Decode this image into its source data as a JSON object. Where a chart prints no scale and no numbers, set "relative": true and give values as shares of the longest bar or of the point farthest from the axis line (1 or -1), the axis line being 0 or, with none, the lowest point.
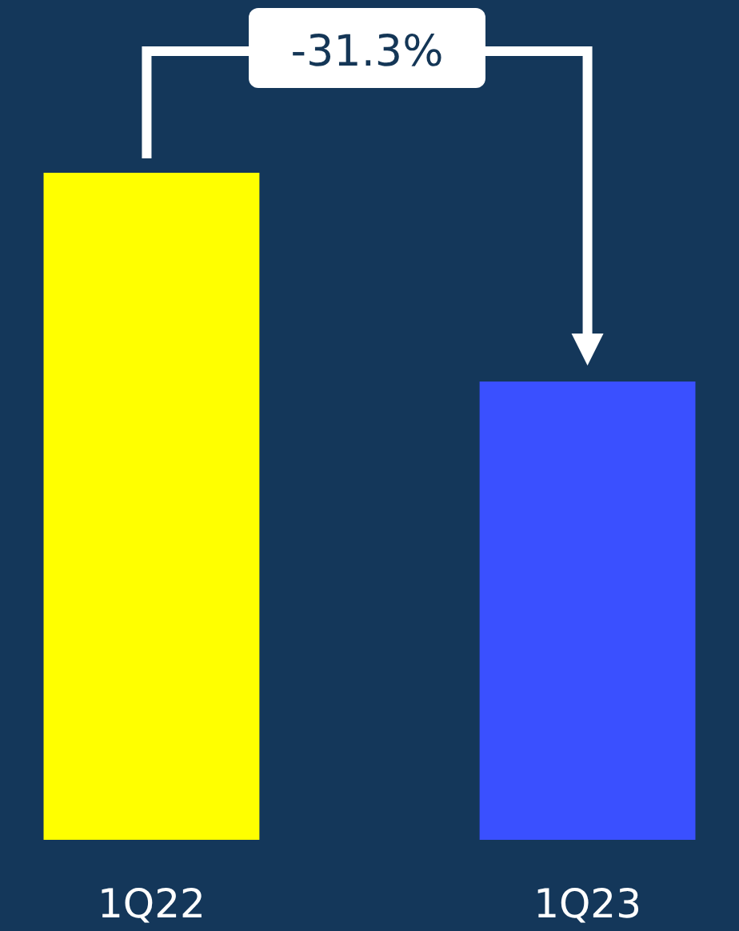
{
  "chart_data": {
    "type": "bar",
    "relative": true,
    "categories": [
      "1Q22",
      "1Q23"
    ],
    "values": [
      1,
      0.687
    ],
    "colors": [
      "#ffff00",
      "#3a50ff"
    ],
    "annotations": [
      "-31.3%"
    ]
  }
}
